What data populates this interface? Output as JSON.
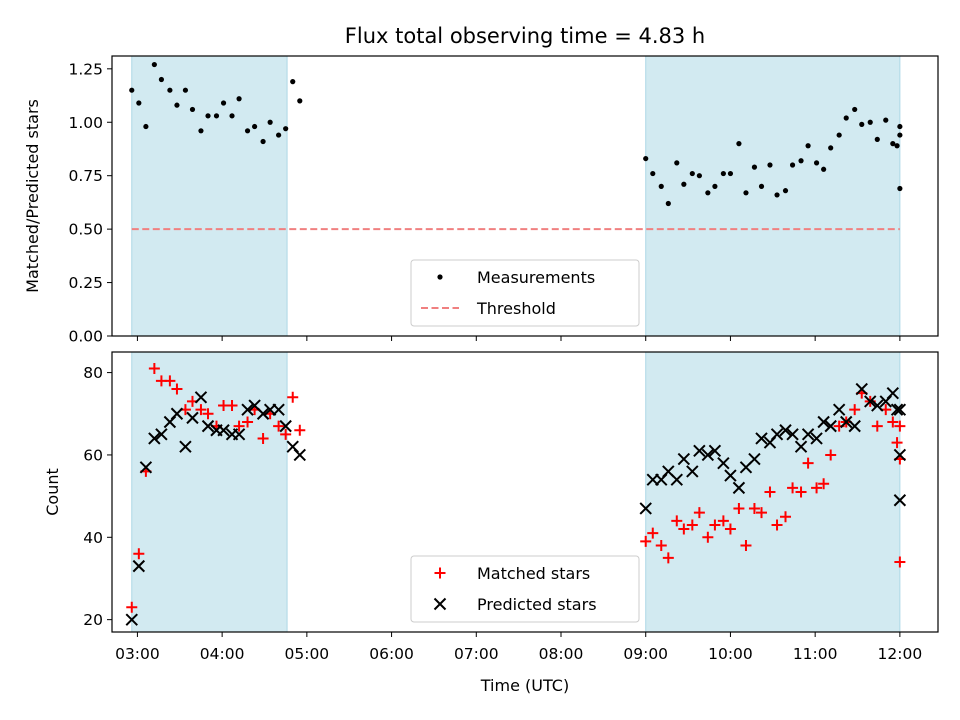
{
  "chart_data": {
    "title": "Flux total observing time = 4.83 h",
    "xlabel": "Time (UTC)",
    "x_unit": "hours UTC",
    "xlim": [
      "02:42",
      "12:27"
    ],
    "x_ticks": [
      "03:00",
      "04:00",
      "05:00",
      "06:00",
      "07:00",
      "08:00",
      "09:00",
      "10:00",
      "11:00",
      "12:00"
    ],
    "shaded_intervals": [
      [
        "02:56",
        "04:46"
      ],
      [
        "09:00",
        "12:00"
      ]
    ],
    "shade_color": "#add8e6",
    "panels": [
      {
        "type": "scatter",
        "ylabel": "Matched/Predicted stars",
        "ylim": [
          0,
          1.31
        ],
        "y_ticks": [
          "0.00",
          "0.25",
          "0.50",
          "0.75",
          "1.00",
          "1.25"
        ],
        "legend": "lower center",
        "series": [
          {
            "name": "Measurements",
            "marker": "dot",
            "color": "#000000",
            "points": [
              [
                "02:56",
                1.15
              ],
              [
                "03:01",
                1.09
              ],
              [
                "03:06",
                0.98
              ],
              [
                "03:12",
                1.27
              ],
              [
                "03:17",
                1.2
              ],
              [
                "03:23",
                1.15
              ],
              [
                "03:28",
                1.08
              ],
              [
                "03:34",
                1.15
              ],
              [
                "03:39",
                1.06
              ],
              [
                "03:45",
                0.96
              ],
              [
                "03:50",
                1.03
              ],
              [
                "03:56",
                1.03
              ],
              [
                "04:01",
                1.09
              ],
              [
                "04:07",
                1.03
              ],
              [
                "04:12",
                1.11
              ],
              [
                "04:18",
                0.96
              ],
              [
                "04:23",
                0.98
              ],
              [
                "04:29",
                0.91
              ],
              [
                "04:34",
                1.0
              ],
              [
                "04:40",
                0.94
              ],
              [
                "04:45",
                0.97
              ],
              [
                "04:50",
                1.19
              ],
              [
                "04:55",
                1.1
              ],
              [
                "09:00",
                0.83
              ],
              [
                "09:05",
                0.76
              ],
              [
                "09:11",
                0.7
              ],
              [
                "09:16",
                0.62
              ],
              [
                "09:22",
                0.81
              ],
              [
                "09:27",
                0.71
              ],
              [
                "09:33",
                0.76
              ],
              [
                "09:38",
                0.75
              ],
              [
                "09:44",
                0.67
              ],
              [
                "09:49",
                0.7
              ],
              [
                "09:55",
                0.76
              ],
              [
                "10:00",
                0.76
              ],
              [
                "10:06",
                0.9
              ],
              [
                "10:11",
                0.67
              ],
              [
                "10:17",
                0.79
              ],
              [
                "10:22",
                0.7
              ],
              [
                "10:28",
                0.8
              ],
              [
                "10:33",
                0.66
              ],
              [
                "10:39",
                0.68
              ],
              [
                "10:44",
                0.8
              ],
              [
                "10:50",
                0.82
              ],
              [
                "10:55",
                0.89
              ],
              [
                "11:01",
                0.81
              ],
              [
                "11:06",
                0.78
              ],
              [
                "11:11",
                0.88
              ],
              [
                "11:17",
                0.94
              ],
              [
                "11:22",
                1.02
              ],
              [
                "11:28",
                1.06
              ],
              [
                "11:33",
                0.99
              ],
              [
                "11:39",
                1.0
              ],
              [
                "11:44",
                0.92
              ],
              [
                "11:50",
                1.01
              ],
              [
                "11:55",
                0.9
              ],
              [
                "12:00",
                0.94
              ],
              [
                "11:58",
                0.89
              ],
              [
                "12:00",
                0.98
              ],
              [
                "12:00",
                0.69
              ]
            ]
          },
          {
            "name": "Threshold",
            "type": "hline",
            "value": 0.5,
            "color": "#f08080",
            "style": "dashed"
          }
        ]
      },
      {
        "type": "scatter",
        "ylabel": "Count",
        "ylim": [
          17,
          85
        ],
        "y_ticks": [
          "20",
          "40",
          "60",
          "80"
        ],
        "legend": "lower center",
        "series": [
          {
            "name": "Matched stars",
            "marker": "+",
            "color": "#ff0000",
            "points": [
              [
                "02:56",
                23
              ],
              [
                "03:01",
                36
              ],
              [
                "03:06",
                56
              ],
              [
                "03:12",
                81
              ],
              [
                "03:17",
                78
              ],
              [
                "03:23",
                78
              ],
              [
                "03:28",
                76
              ],
              [
                "03:34",
                71
              ],
              [
                "03:39",
                73
              ],
              [
                "03:45",
                71
              ],
              [
                "03:50",
                70
              ],
              [
                "03:56",
                67
              ],
              [
                "04:01",
                72
              ],
              [
                "04:07",
                72
              ],
              [
                "04:12",
                67
              ],
              [
                "04:18",
                68
              ],
              [
                "04:23",
                71
              ],
              [
                "04:29",
                64
              ],
              [
                "04:34",
                70
              ],
              [
                "04:40",
                67
              ],
              [
                "04:45",
                65
              ],
              [
                "04:50",
                74
              ],
              [
                "04:55",
                66
              ],
              [
                "09:00",
                39
              ],
              [
                "09:05",
                41
              ],
              [
                "09:11",
                38
              ],
              [
                "09:16",
                35
              ],
              [
                "09:22",
                44
              ],
              [
                "09:27",
                42
              ],
              [
                "09:33",
                43
              ],
              [
                "09:38",
                46
              ],
              [
                "09:44",
                40
              ],
              [
                "09:49",
                43
              ],
              [
                "09:55",
                44
              ],
              [
                "10:00",
                42
              ],
              [
                "10:06",
                47
              ],
              [
                "10:11",
                38
              ],
              [
                "10:17",
                47
              ],
              [
                "10:22",
                46
              ],
              [
                "10:28",
                51
              ],
              [
                "10:33",
                43
              ],
              [
                "10:39",
                45
              ],
              [
                "10:44",
                52
              ],
              [
                "10:50",
                51
              ],
              [
                "10:55",
                58
              ],
              [
                "11:01",
                52
              ],
              [
                "11:06",
                53
              ],
              [
                "11:11",
                60
              ],
              [
                "11:17",
                67
              ],
              [
                "11:22",
                68
              ],
              [
                "11:28",
                71
              ],
              [
                "11:33",
                75
              ],
              [
                "11:39",
                73
              ],
              [
                "11:44",
                67
              ],
              [
                "11:50",
                71
              ],
              [
                "11:55",
                68
              ],
              [
                "12:00",
                67
              ],
              [
                "11:58",
                63
              ],
              [
                "12:00",
                59
              ],
              [
                "12:00",
                34
              ]
            ]
          },
          {
            "name": "Predicted stars",
            "marker": "x",
            "color": "#000000",
            "points": [
              [
                "02:56",
                20
              ],
              [
                "03:01",
                33
              ],
              [
                "03:06",
                57
              ],
              [
                "03:12",
                64
              ],
              [
                "03:17",
                65
              ],
              [
                "03:23",
                68
              ],
              [
                "03:28",
                70
              ],
              [
                "03:34",
                62
              ],
              [
                "03:39",
                69
              ],
              [
                "03:45",
                74
              ],
              [
                "03:50",
                67
              ],
              [
                "03:56",
                66
              ],
              [
                "04:01",
                66
              ],
              [
                "04:07",
                65
              ],
              [
                "04:12",
                65
              ],
              [
                "04:18",
                71
              ],
              [
                "04:23",
                72
              ],
              [
                "04:29",
                70
              ],
              [
                "04:34",
                71
              ],
              [
                "04:40",
                71
              ],
              [
                "04:45",
                67
              ],
              [
                "04:50",
                62
              ],
              [
                "04:55",
                60
              ],
              [
                "09:00",
                47
              ],
              [
                "09:05",
                54
              ],
              [
                "09:11",
                54
              ],
              [
                "09:16",
                56
              ],
              [
                "09:22",
                54
              ],
              [
                "09:27",
                59
              ],
              [
                "09:33",
                56
              ],
              [
                "09:38",
                61
              ],
              [
                "09:44",
                60
              ],
              [
                "09:49",
                61
              ],
              [
                "09:55",
                58
              ],
              [
                "10:00",
                55
              ],
              [
                "10:06",
                52
              ],
              [
                "10:11",
                57
              ],
              [
                "10:17",
                59
              ],
              [
                "10:22",
                64
              ],
              [
                "10:28",
                63
              ],
              [
                "10:33",
                65
              ],
              [
                "10:39",
                66
              ],
              [
                "10:44",
                65
              ],
              [
                "10:50",
                62
              ],
              [
                "10:55",
                65
              ],
              [
                "11:01",
                64
              ],
              [
                "11:06",
                68
              ],
              [
                "11:11",
                67
              ],
              [
                "11:17",
                71
              ],
              [
                "11:22",
                68
              ],
              [
                "11:28",
                67
              ],
              [
                "11:33",
                76
              ],
              [
                "11:39",
                73
              ],
              [
                "11:44",
                72
              ],
              [
                "11:50",
                73
              ],
              [
                "11:55",
                75
              ],
              [
                "12:00",
                71
              ],
              [
                "11:58",
                71
              ],
              [
                "12:00",
                60
              ],
              [
                "12:00",
                49
              ]
            ]
          }
        ]
      }
    ]
  }
}
